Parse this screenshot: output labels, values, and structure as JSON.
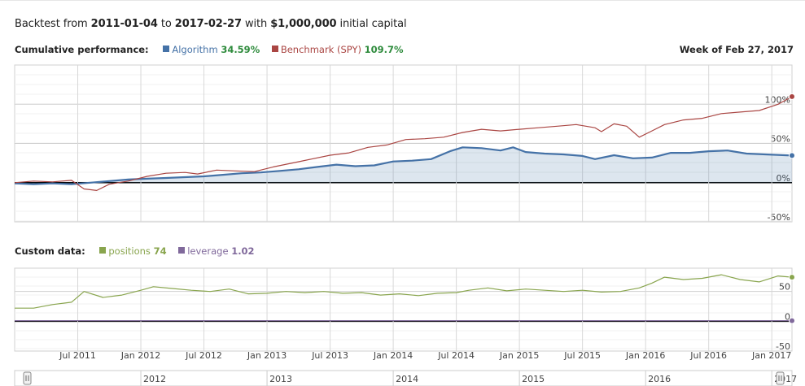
{
  "header": {
    "prefix": "Backtest from",
    "start_date": "2011-01-04",
    "to_word": "to",
    "end_date": "2017-02-27",
    "with_word": "with",
    "capital": "$1,000,000",
    "suffix": "initial capital"
  },
  "performance": {
    "label": "Cumulative performance:",
    "algorithm_name": "Algorithm",
    "algorithm_value": "34.59%",
    "benchmark_name": "Benchmark (SPY)",
    "benchmark_value": "109.7%",
    "week_label": "Week of Feb 27, 2017"
  },
  "custom": {
    "label": "Custom data:",
    "positions_name": "positions",
    "positions_value": "74",
    "leverage_name": "leverage",
    "leverage_value": "1.02"
  },
  "colors": {
    "algorithm": "#4572a7",
    "benchmark": "#aa4643",
    "positions": "#89a54e",
    "leverage": "#80699b",
    "value_green": "#2e8b3c"
  },
  "chart_data": [
    {
      "type": "line",
      "title": "Cumulative performance",
      "y_tick_labels": [
        "100%",
        "50%",
        "0%",
        "-50%"
      ],
      "y_ticks": [
        100,
        50,
        0,
        -50
      ],
      "ylim": [
        -50,
        150
      ],
      "y_unit": "%",
      "x_tick_labels": [
        "Jul 2011",
        "Jan 2012",
        "Jul 2012",
        "Jan 2013",
        "Jul 2013",
        "Jan 2014",
        "Jul 2014",
        "Jan 2015",
        "Jul 2015",
        "Jan 2016",
        "Jul 2016",
        "Jan 2017"
      ],
      "x_ticks": [
        2011.5,
        2012.0,
        2012.5,
        2013.0,
        2013.5,
        2014.0,
        2014.5,
        2015.0,
        2015.5,
        2016.0,
        2016.5,
        2017.0
      ],
      "xlim": [
        2011.0,
        2017.16
      ],
      "grid": true,
      "series": [
        {
          "name": "Algorithm",
          "color": "#4572a7",
          "area": true,
          "x": [
            2011.0,
            2011.15,
            2011.3,
            2011.45,
            2011.6,
            2011.75,
            2011.9,
            2012.05,
            2012.2,
            2012.35,
            2012.5,
            2012.65,
            2012.8,
            2012.95,
            2013.1,
            2013.25,
            2013.4,
            2013.55,
            2013.7,
            2013.85,
            2014.0,
            2014.15,
            2014.3,
            2014.45,
            2014.55,
            2014.7,
            2014.85,
            2014.95,
            2015.05,
            2015.2,
            2015.35,
            2015.5,
            2015.6,
            2015.75,
            2015.9,
            2016.05,
            2016.2,
            2016.35,
            2016.5,
            2016.65,
            2016.8,
            2016.95,
            2017.16
          ],
          "y": [
            -1,
            -2,
            -1,
            -2,
            0,
            2,
            4,
            5,
            6,
            7,
            8,
            10,
            12,
            13,
            15,
            17,
            20,
            23,
            21,
            22,
            27,
            28,
            30,
            40,
            45,
            44,
            41,
            45,
            39,
            37,
            36,
            34,
            30,
            35,
            31,
            32,
            38,
            38,
            40,
            41,
            37,
            36,
            34.59
          ]
        },
        {
          "name": "Benchmark (SPY)",
          "color": "#aa4643",
          "area": false,
          "x": [
            2011.0,
            2011.15,
            2011.3,
            2011.45,
            2011.55,
            2011.65,
            2011.75,
            2011.9,
            2012.05,
            2012.2,
            2012.35,
            2012.45,
            2012.6,
            2012.75,
            2012.9,
            2013.05,
            2013.2,
            2013.35,
            2013.5,
            2013.65,
            2013.8,
            2013.95,
            2014.1,
            2014.25,
            2014.4,
            2014.55,
            2014.7,
            2014.85,
            2015.0,
            2015.15,
            2015.3,
            2015.45,
            2015.6,
            2015.65,
            2015.75,
            2015.85,
            2015.95,
            2016.05,
            2016.15,
            2016.3,
            2016.45,
            2016.6,
            2016.75,
            2016.9,
            2017.05,
            2017.16
          ],
          "y": [
            0,
            2,
            1,
            3,
            -8,
            -10,
            -2,
            2,
            8,
            12,
            13,
            11,
            16,
            15,
            14,
            20,
            25,
            30,
            35,
            38,
            45,
            48,
            55,
            56,
            58,
            64,
            68,
            66,
            68,
            70,
            72,
            74,
            70,
            65,
            75,
            72,
            58,
            66,
            74,
            80,
            82,
            88,
            90,
            92,
            100,
            109.7
          ]
        }
      ]
    },
    {
      "type": "line",
      "title": "Custom data",
      "y_tick_labels": [
        "50",
        "0",
        "-50"
      ],
      "y_ticks": [
        50,
        0,
        -50
      ],
      "ylim": [
        -50,
        100
      ],
      "x_tick_labels": [
        "Jul 2011",
        "Jan 2012",
        "Jul 2012",
        "Jan 2013",
        "Jul 2013",
        "Jan 2014",
        "Jul 2014",
        "Jan 2015",
        "Jul 2015",
        "Jan 2016",
        "Jul 2016",
        "Jan 2017"
      ],
      "x_ticks": [
        2011.5,
        2012.0,
        2012.5,
        2013.0,
        2013.5,
        2014.0,
        2014.5,
        2015.0,
        2015.5,
        2016.0,
        2016.5,
        2017.0
      ],
      "xlim": [
        2011.0,
        2017.16
      ],
      "grid": true,
      "series": [
        {
          "name": "positions",
          "color": "#89a54e",
          "x": [
            2011.0,
            2011.15,
            2011.3,
            2011.45,
            2011.55,
            2011.7,
            2011.85,
            2012.0,
            2012.1,
            2012.25,
            2012.4,
            2012.55,
            2012.7,
            2012.85,
            2013.0,
            2013.15,
            2013.3,
            2013.45,
            2013.6,
            2013.75,
            2013.9,
            2014.05,
            2014.2,
            2014.35,
            2014.5,
            2014.6,
            2014.75,
            2014.9,
            2015.05,
            2015.2,
            2015.35,
            2015.5,
            2015.65,
            2015.8,
            2015.95,
            2016.05,
            2016.15,
            2016.3,
            2016.45,
            2016.6,
            2016.75,
            2016.9,
            2017.05,
            2017.16
          ],
          "y": [
            22,
            22,
            28,
            32,
            50,
            40,
            44,
            52,
            58,
            55,
            52,
            50,
            54,
            46,
            47,
            50,
            48,
            50,
            47,
            48,
            44,
            46,
            43,
            47,
            48,
            52,
            56,
            51,
            54,
            52,
            50,
            52,
            49,
            50,
            56,
            64,
            74,
            70,
            72,
            78,
            70,
            66,
            76,
            74
          ]
        },
        {
          "name": "leverage",
          "color": "#80699b",
          "x": [
            2011.0,
            2017.16
          ],
          "y": [
            1.02,
            1.02
          ]
        }
      ]
    }
  ],
  "navigator": {
    "year_labels": [
      "2012",
      "2013",
      "2014",
      "2015",
      "2016",
      "2017"
    ],
    "year_ticks": [
      2012,
      2013,
      2014,
      2015,
      2016,
      2017
    ]
  }
}
